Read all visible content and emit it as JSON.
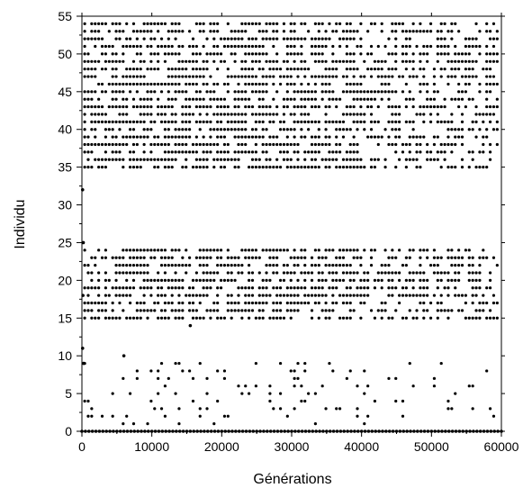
{
  "chart_data": {
    "type": "scatter",
    "title": "",
    "xlabel": "Générations",
    "ylabel": "Individu",
    "xlim": [
      0,
      60000
    ],
    "ylim": [
      0,
      55
    ],
    "xticks": [
      0,
      10000,
      20000,
      30000,
      40000,
      50000,
      60000
    ],
    "yticks": [
      0,
      5,
      10,
      15,
      20,
      25,
      30,
      35,
      40,
      45,
      50,
      55
    ],
    "grid": false,
    "legend": "none",
    "marker_color": "#000000",
    "series": [
      {
        "bands": [
          {
            "y_from": 35,
            "y_to": 54,
            "x_from": 400,
            "x_to": 59800,
            "density": 0.7
          },
          {
            "y_from": 15,
            "y_to": 24,
            "x_from": 400,
            "x_to": 59800,
            "density": 0.7
          },
          {
            "y_from": 1,
            "y_to": 9,
            "x_from": 400,
            "x_to": 59800,
            "density": 0.12
          }
        ],
        "baseline": {
          "y": 0,
          "x_from": 0,
          "x_to": 60000
        },
        "points": [
          {
            "x": 100,
            "y": 32
          },
          {
            "x": 200,
            "y": 25
          },
          {
            "x": 150,
            "y": 18
          },
          {
            "x": 100,
            "y": 11
          },
          {
            "x": 250,
            "y": 9
          },
          {
            "x": 15500,
            "y": 14
          },
          {
            "x": 6000,
            "y": 10
          }
        ]
      }
    ]
  }
}
